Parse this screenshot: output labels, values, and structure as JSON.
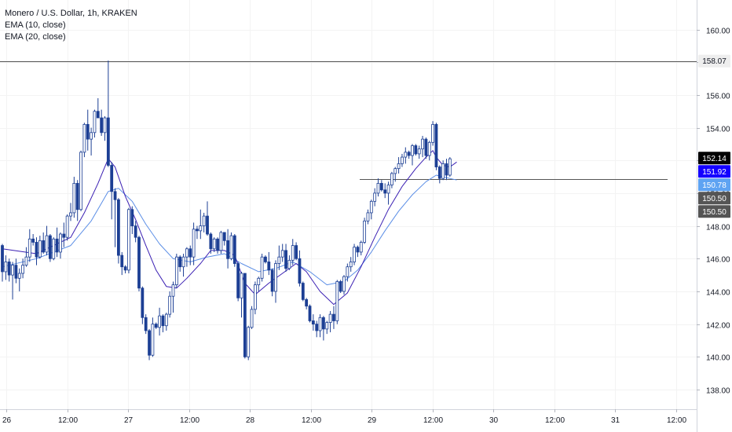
{
  "legend": {
    "symbol": "Monero / U.S. Dollar, 1h, KRAKEN",
    "ema10": "EMA (10, close)",
    "ema20": "EMA (20, close)"
  },
  "colors": {
    "bull_body": "#ffffff",
    "bull_border": "#1c3f94",
    "bear_body": "#1c3f94",
    "wick": "#1c3f94",
    "ema10": "#3a1fb3",
    "ema20": "#5b8ee6",
    "hline": "#555555",
    "axis_text": "#131722",
    "badge_black": "#000000",
    "badge_blue": "#1400ff",
    "badge_lightblue": "#5ea3f2",
    "badge_gray": "#555555",
    "badge_ath": "#eeeeee"
  },
  "chart_data": {
    "type": "candlestick",
    "title": "Monero / U.S. Dollar, 1h, KRAKEN",
    "ylim": [
      136.8,
      161.8
    ],
    "y_ticks": [
      "160.00",
      "158.00",
      "156.00",
      "154.00",
      "152.00",
      "150.00",
      "148.00",
      "146.00",
      "144.00",
      "142.00",
      "140.00",
      "138.00"
    ],
    "x_ticks": [
      "26",
      "12:00",
      "27",
      "12:00",
      "28",
      "12:00",
      "29",
      "12:00",
      "30",
      "12:00",
      "31",
      "12:00"
    ],
    "horizontal_lines": [
      158.07,
      150.85
    ],
    "price_badges": [
      {
        "value": 158.07,
        "label": "158.07",
        "style": "ath"
      },
      {
        "value": 152.14,
        "label": "152.14",
        "style": "black"
      },
      {
        "value": 151.92,
        "label": "151.92",
        "style": "blue"
      },
      {
        "value": 150.78,
        "label": "150.78",
        "style": "lightblue"
      },
      {
        "value": 150.5,
        "label": "150.50",
        "style": "gray"
      },
      {
        "value": 150.5,
        "label": "150.50",
        "style": "gray"
      }
    ],
    "ohlc": [
      [
        146.8,
        146.9,
        144.6,
        145.2
      ],
      [
        145.2,
        146.2,
        144.7,
        145.8
      ],
      [
        145.8,
        146.0,
        144.6,
        145.0
      ],
      [
        145.0,
        145.8,
        143.5,
        145.6
      ],
      [
        145.6,
        146.0,
        144.5,
        144.8
      ],
      [
        144.8,
        145.4,
        144.0,
        145.1
      ],
      [
        145.1,
        146.0,
        144.8,
        145.6
      ],
      [
        145.6,
        146.7,
        145.5,
        146.1
      ],
      [
        146.1,
        147.8,
        145.8,
        147.2
      ],
      [
        147.2,
        147.5,
        146.8,
        147.0
      ],
      [
        147.0,
        147.3,
        145.6,
        146.1
      ],
      [
        146.1,
        147.4,
        146.0,
        147.1
      ],
      [
        147.1,
        147.6,
        146.3,
        146.4
      ],
      [
        146.4,
        148.0,
        146.2,
        147.4
      ],
      [
        147.4,
        147.5,
        145.8,
        146.0
      ],
      [
        146.0,
        147.3,
        145.9,
        147.2
      ],
      [
        147.2,
        147.9,
        146.1,
        146.4
      ],
      [
        146.4,
        147.6,
        146.0,
        147.5
      ],
      [
        147.5,
        148.2,
        146.7,
        147.3
      ],
      [
        147.3,
        148.7,
        147.1,
        148.6
      ],
      [
        148.6,
        149.4,
        148.3,
        148.8
      ],
      [
        148.8,
        151.0,
        148.5,
        150.6
      ],
      [
        150.6,
        150.8,
        148.3,
        149.0
      ],
      [
        149.0,
        152.6,
        148.9,
        152.5
      ],
      [
        152.5,
        154.3,
        152.2,
        154.2
      ],
      [
        154.2,
        155.1,
        152.6,
        153.3
      ],
      [
        153.3,
        154.0,
        152.3,
        153.7
      ],
      [
        153.7,
        155.1,
        153.4,
        155.0
      ],
      [
        155.0,
        155.8,
        154.6,
        154.6
      ],
      [
        154.6,
        155.1,
        153.5,
        153.7
      ],
      [
        153.7,
        154.7,
        153.2,
        154.6
      ],
      [
        154.6,
        158.1,
        151.6,
        151.7
      ],
      [
        151.7,
        151.9,
        148.4,
        150.1
      ],
      [
        150.1,
        150.3,
        146.7,
        149.6
      ],
      [
        149.6,
        149.7,
        145.7,
        146.2
      ],
      [
        146.2,
        146.4,
        145.0,
        145.5
      ],
      [
        145.5,
        145.6,
        145.1,
        145.3
      ],
      [
        145.3,
        149.1,
        145.1,
        149.0
      ],
      [
        149.0,
        149.2,
        147.5,
        148.0
      ],
      [
        148.0,
        148.3,
        147.0,
        147.3
      ],
      [
        147.3,
        147.4,
        144.0,
        144.2
      ],
      [
        144.2,
        144.3,
        142.0,
        142.4
      ],
      [
        142.4,
        142.6,
        141.4,
        141.6
      ],
      [
        141.6,
        141.7,
        139.8,
        140.1
      ],
      [
        140.1,
        142.4,
        140.0,
        142.0
      ],
      [
        142.0,
        142.1,
        141.7,
        141.8
      ],
      [
        141.8,
        143.0,
        141.3,
        142.5
      ],
      [
        142.5,
        142.6,
        141.5,
        141.9
      ],
      [
        141.9,
        142.7,
        141.6,
        142.6
      ],
      [
        142.6,
        144.0,
        142.4,
        143.7
      ],
      [
        143.7,
        144.6,
        142.7,
        144.4
      ],
      [
        144.4,
        146.3,
        144.2,
        146.1
      ],
      [
        146.1,
        146.2,
        145.2,
        145.5
      ],
      [
        145.5,
        146.3,
        144.9,
        146.1
      ],
      [
        146.1,
        146.7,
        145.5,
        146.6
      ],
      [
        146.6,
        146.8,
        145.6,
        146.1
      ],
      [
        146.1,
        148.2,
        145.6,
        147.8
      ],
      [
        147.8,
        148.0,
        147.2,
        147.7
      ],
      [
        147.7,
        149.0,
        147.2,
        148.0
      ],
      [
        148.0,
        148.8,
        147.6,
        148.6
      ],
      [
        148.6,
        149.5,
        147.4,
        147.5
      ],
      [
        147.5,
        147.6,
        146.3,
        146.6
      ],
      [
        146.6,
        147.3,
        146.4,
        147.2
      ],
      [
        147.2,
        147.3,
        146.3,
        146.5
      ],
      [
        146.5,
        147.7,
        146.3,
        147.6
      ],
      [
        147.6,
        147.6,
        146.8,
        147.1
      ],
      [
        147.1,
        147.8,
        145.4,
        146.0
      ],
      [
        146.0,
        147.6,
        145.9,
        147.4
      ],
      [
        147.4,
        147.5,
        145.5,
        145.7
      ],
      [
        145.7,
        145.8,
        143.4,
        143.6
      ],
      [
        143.6,
        145.2,
        142.4,
        145.1
      ],
      [
        145.1,
        145.1,
        139.9,
        140.0
      ],
      [
        140.0,
        141.9,
        139.8,
        141.8
      ],
      [
        141.8,
        143.1,
        141.7,
        142.9
      ],
      [
        142.9,
        144.6,
        142.6,
        144.4
      ],
      [
        144.4,
        144.9,
        144.0,
        144.8
      ],
      [
        144.8,
        146.3,
        144.6,
        146.1
      ],
      [
        146.1,
        146.2,
        145.7,
        145.8
      ],
      [
        145.8,
        146.4,
        145.0,
        145.3
      ],
      [
        145.3,
        145.4,
        143.7,
        144.0
      ],
      [
        144.0,
        145.9,
        143.3,
        145.7
      ],
      [
        145.7,
        146.8,
        145.3,
        146.1
      ],
      [
        146.1,
        146.9,
        145.8,
        146.5
      ],
      [
        146.5,
        146.9,
        145.2,
        145.4
      ],
      [
        145.4,
        146.2,
        145.3,
        145.9
      ],
      [
        145.9,
        147.2,
        145.6,
        146.8
      ],
      [
        146.8,
        147.0,
        145.9,
        146.0
      ],
      [
        146.0,
        146.5,
        144.3,
        144.5
      ],
      [
        144.5,
        144.6,
        143.4,
        143.5
      ],
      [
        143.5,
        143.6,
        142.9,
        143.1
      ],
      [
        143.1,
        143.2,
        142.1,
        142.2
      ],
      [
        142.2,
        142.6,
        141.6,
        142.0
      ],
      [
        142.0,
        142.2,
        141.2,
        141.6
      ],
      [
        141.6,
        142.6,
        141.2,
        142.4
      ],
      [
        142.4,
        142.5,
        141.0,
        141.7
      ],
      [
        141.7,
        142.2,
        141.4,
        142.1
      ],
      [
        142.1,
        142.8,
        141.5,
        142.6
      ],
      [
        142.6,
        143.1,
        141.7,
        142.2
      ],
      [
        142.2,
        144.7,
        142.0,
        144.6
      ],
      [
        144.6,
        144.7,
        143.9,
        144.0
      ],
      [
        144.0,
        145.0,
        143.8,
        144.9
      ],
      [
        144.9,
        145.7,
        144.6,
        145.5
      ],
      [
        145.5,
        146.1,
        145.2,
        145.8
      ],
      [
        145.8,
        146.9,
        145.6,
        146.7
      ],
      [
        146.7,
        146.8,
        146.1,
        146.4
      ],
      [
        146.4,
        147.1,
        146.2,
        147.0
      ],
      [
        147.0,
        148.5,
        146.9,
        148.3
      ],
      [
        148.3,
        149.0,
        148.1,
        148.8
      ],
      [
        148.8,
        149.6,
        148.4,
        149.5
      ],
      [
        149.5,
        150.3,
        149.2,
        150.0
      ],
      [
        150.0,
        150.9,
        149.8,
        150.6
      ],
      [
        150.6,
        150.8,
        150.1,
        150.2
      ],
      [
        150.2,
        150.6,
        149.7,
        150.0
      ],
      [
        150.0,
        150.7,
        149.3,
        150.5
      ],
      [
        150.5,
        151.3,
        150.3,
        151.2
      ],
      [
        151.2,
        151.6,
        150.7,
        151.5
      ],
      [
        151.5,
        152.2,
        151.2,
        151.8
      ],
      [
        151.8,
        152.4,
        151.6,
        152.2
      ],
      [
        152.2,
        152.8,
        151.8,
        152.5
      ],
      [
        152.5,
        152.6,
        152.1,
        152.3
      ],
      [
        152.3,
        153.0,
        151.7,
        152.9
      ],
      [
        152.9,
        153.0,
        152.3,
        152.4
      ],
      [
        152.4,
        152.9,
        152.1,
        152.7
      ],
      [
        152.7,
        153.5,
        152.2,
        153.3
      ],
      [
        153.3,
        153.4,
        152.1,
        152.3
      ],
      [
        152.3,
        153.2,
        152.0,
        153.1
      ],
      [
        153.1,
        154.4,
        152.9,
        154.2
      ],
      [
        154.2,
        154.3,
        151.4,
        151.6
      ],
      [
        151.6,
        151.7,
        150.6,
        150.9
      ],
      [
        150.9,
        152.0,
        150.8,
        151.8
      ],
      [
        151.8,
        152.1,
        150.8,
        151.1
      ],
      [
        151.1,
        152.2,
        151.0,
        152.1
      ]
    ],
    "ema10": [
      [
        0,
        146.6
      ],
      [
        10,
        146.3
      ],
      [
        20,
        147.3
      ],
      [
        24,
        148.8
      ],
      [
        28,
        150.6
      ],
      [
        31,
        152.1
      ],
      [
        33,
        151.6
      ],
      [
        36,
        149.8
      ],
      [
        39,
        148.4
      ],
      [
        42,
        146.8
      ],
      [
        45,
        145.3
      ],
      [
        48,
        144.3
      ],
      [
        51,
        144.2
      ],
      [
        54,
        144.8
      ],
      [
        58,
        145.7
      ],
      [
        61,
        146.5
      ],
      [
        65,
        146.5
      ],
      [
        68,
        146.2
      ],
      [
        71,
        144.5
      ],
      [
        74,
        143.8
      ],
      [
        78,
        144.5
      ],
      [
        82,
        145.1
      ],
      [
        86,
        145.7
      ],
      [
        89,
        145.2
      ],
      [
        93,
        144.0
      ],
      [
        97,
        143.2
      ],
      [
        101,
        143.9
      ],
      [
        105,
        145.5
      ],
      [
        109,
        147.3
      ],
      [
        113,
        149.0
      ],
      [
        117,
        150.4
      ],
      [
        121,
        151.5
      ],
      [
        124,
        152.2
      ],
      [
        126,
        152.6
      ],
      [
        127,
        152.2
      ],
      [
        129,
        151.7
      ],
      [
        131,
        151.6
      ],
      [
        133,
        151.9
      ]
    ],
    "ema20": [
      [
        0,
        145.5
      ],
      [
        10,
        146.0
      ],
      [
        20,
        146.8
      ],
      [
        26,
        148.3
      ],
      [
        31,
        150.1
      ],
      [
        34,
        150.3
      ],
      [
        38,
        149.5
      ],
      [
        42,
        148.1
      ],
      [
        46,
        146.9
      ],
      [
        50,
        146.0
      ],
      [
        55,
        145.8
      ],
      [
        60,
        146.1
      ],
      [
        65,
        146.3
      ],
      [
        70,
        145.7
      ],
      [
        75,
        145.2
      ],
      [
        80,
        145.4
      ],
      [
        85,
        145.8
      ],
      [
        90,
        145.2
      ],
      [
        95,
        144.4
      ],
      [
        100,
        144.6
      ],
      [
        104,
        145.3
      ],
      [
        108,
        146.4
      ],
      [
        112,
        147.7
      ],
      [
        116,
        148.9
      ],
      [
        120,
        149.9
      ],
      [
        124,
        150.7
      ],
      [
        127,
        151.1
      ],
      [
        129,
        151.0
      ],
      [
        131,
        150.9
      ],
      [
        133,
        150.8
      ]
    ]
  }
}
